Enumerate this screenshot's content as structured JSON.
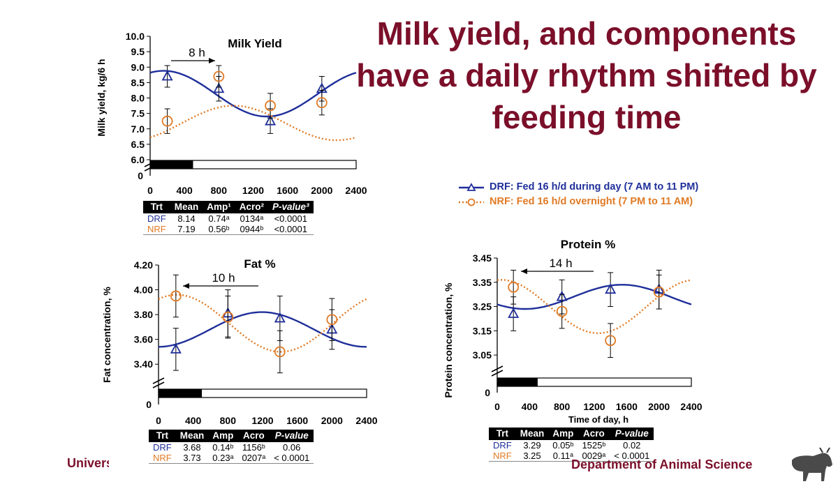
{
  "slide": {
    "title": "Milk yield, and components have a daily rhythm shifted by feeding time",
    "footer_left": "University of Kentucky",
    "footer_right": "Department of Animal Science"
  },
  "legend": {
    "drf": "DRF: Fed 16 h/d during day (7 AM to 11 PM)",
    "nrf": "NRF: Fed 16 h/d overnight (7 PM to 11 AM)"
  },
  "colors": {
    "drf": "#1f2f9a",
    "nrf": "#e07a24",
    "title": "#7b0f2a"
  },
  "chart_data": [
    {
      "id": "milk",
      "type": "scatter",
      "title": "Milk Yield",
      "ylabel": "Milk yield, kg/6 h",
      "xlabel": "",
      "shift_label": "8 h",
      "ylim": [
        6.0,
        10.0
      ],
      "yticks": [
        "6.0",
        "6.5",
        "7.0",
        "7.5",
        "8.0",
        "8.5",
        "9.0",
        "9.5",
        "10.0"
      ],
      "xticks": [
        "0",
        "400",
        "800",
        "1200",
        "1600",
        "2000",
        "2400"
      ],
      "y_zero_label": "0",
      "xlim": [
        0,
        2400
      ],
      "series": [
        {
          "name": "DRF",
          "x": [
            200,
            800,
            1400,
            2000
          ],
          "y": [
            8.7,
            8.3,
            7.25,
            8.3
          ],
          "err": [
            0.35,
            0.4,
            0.4,
            0.4
          ],
          "curve": {
            "mesor": 8.14,
            "amp": 0.74,
            "acro": 1.57
          }
        },
        {
          "name": "NRF",
          "x": [
            200,
            800,
            1400,
            2000
          ],
          "y": [
            7.25,
            8.7,
            7.75,
            7.85
          ],
          "err": [
            0.4,
            0.35,
            0.4,
            0.4
          ],
          "curve": {
            "mesor": 7.19,
            "amp": 0.56,
            "acro": 9.73
          }
        }
      ],
      "table": {
        "headers": [
          "Trt",
          "Mean",
          "Amp¹",
          "Acro²",
          "P-value³"
        ],
        "rows": [
          [
            "DRF",
            "8.14",
            "0.74ᵃ",
            "0134ᵃ",
            "<0.0001"
          ],
          [
            "NRF",
            "7.19",
            "0.56ᵇ",
            "0944ᵇ",
            "<0.0001"
          ]
        ]
      }
    },
    {
      "id": "fat",
      "type": "scatter",
      "title": "Fat %",
      "ylabel": "Fat concentration, %",
      "xlabel": "",
      "shift_label": "10 h",
      "ylim": [
        3.3,
        4.2
      ],
      "yticks": [
        "3.40",
        "3.60",
        "3.80",
        "4.00",
        "4.20"
      ],
      "ytick_values": [
        3.4,
        3.6,
        3.8,
        4.0,
        4.2
      ],
      "xticks": [
        "0",
        "400",
        "800",
        "1200",
        "1600",
        "2000",
        "2400"
      ],
      "y_zero_label": "0",
      "xlim": [
        0,
        2400
      ],
      "series": [
        {
          "name": "DRF",
          "x": [
            200,
            800,
            1400,
            2000
          ],
          "y": [
            3.52,
            3.81,
            3.77,
            3.68
          ],
          "err": [
            0.17,
            0.19,
            0.18,
            0.16
          ],
          "curve": {
            "mesor": 3.68,
            "amp": 0.14,
            "acro": 11.93
          }
        },
        {
          "name": "NRF",
          "x": [
            200,
            800,
            1400,
            2000
          ],
          "y": [
            3.95,
            3.78,
            3.5,
            3.76
          ],
          "err": [
            0.17,
            0.17,
            0.17,
            0.17
          ],
          "curve": {
            "mesor": 3.73,
            "amp": 0.23,
            "acro": 2.12
          }
        }
      ],
      "table": {
        "headers": [
          "Trt",
          "Mean",
          "Amp",
          "Acro",
          "P-value"
        ],
        "rows": [
          [
            "DRF",
            "3.68",
            "0.14ᵇ",
            "1156ᵇ",
            "0.06"
          ],
          [
            "NRF",
            "3.73",
            "0.23ᵃ",
            "0207ᵃ",
            "< 0.0001"
          ]
        ]
      }
    },
    {
      "id": "protein",
      "type": "scatter",
      "title": "Protein %",
      "ylabel": "Protein concentration, %",
      "xlabel": "Time of day, h",
      "shift_label": "14 h",
      "ylim": [
        3.01,
        3.45
      ],
      "yticks": [
        "3.05",
        "3.15",
        "3.25",
        "3.35",
        "3.45"
      ],
      "ytick_values": [
        3.05,
        3.15,
        3.25,
        3.35,
        3.45
      ],
      "xticks": [
        "0",
        "400",
        "800",
        "1200",
        "1600",
        "2000",
        "2400"
      ],
      "y_zero_label": "0",
      "xlim": [
        0,
        2400
      ],
      "series": [
        {
          "name": "DRF",
          "x": [
            200,
            800,
            1400,
            2000
          ],
          "y": [
            3.22,
            3.29,
            3.32,
            3.32
          ],
          "err": [
            0.07,
            0.07,
            0.07,
            0.08
          ],
          "curve": {
            "mesor": 3.29,
            "amp": 0.05,
            "acro": 15.42
          }
        },
        {
          "name": "NRF",
          "x": [
            200,
            800,
            1400,
            2000
          ],
          "y": [
            3.33,
            3.23,
            3.11,
            3.31
          ],
          "err": [
            0.07,
            0.07,
            0.07,
            0.07
          ],
          "curve": {
            "mesor": 3.25,
            "amp": 0.11,
            "acro": 0.48
          }
        }
      ],
      "table": {
        "headers": [
          "Trt",
          "Mean",
          "Amp",
          "Acro",
          "P-value"
        ],
        "rows": [
          [
            "DRF",
            "3.29",
            "0.05ᵇ",
            "1525ᵇ",
            "0.02"
          ],
          [
            "NRF",
            "3.25",
            "0.11ᵃ",
            "0029ᵃ",
            "< 0.0001"
          ]
        ]
      }
    }
  ]
}
